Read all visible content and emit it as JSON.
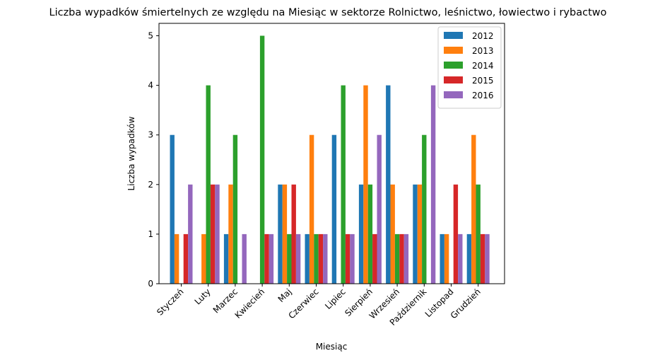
{
  "chart_data": {
    "type": "bar",
    "title": "Liczba wypadków śmiertelnych ze względu na Miesiąc w sektorze Rolnictwo, leśnictwo, łowiectwo i rybactwo",
    "xlabel": "Miesiąc",
    "ylabel": "Liczba wypadków",
    "ylim": [
      0,
      5.25
    ],
    "yticks": [
      0,
      1,
      2,
      3,
      4,
      5
    ],
    "grid": false,
    "legend_position": "top-right",
    "categories": [
      "Styczeń",
      "Luty",
      "Marzec",
      "Kwiecień",
      "Maj",
      "Czerwiec",
      "Lipiec",
      "Sierpień",
      "Wrzesień",
      "Październik",
      "Listopad",
      "Grudzień"
    ],
    "series": [
      {
        "name": "2012",
        "color": "#1f77b4",
        "values": [
          3,
          0,
          1,
          0,
          2,
          1,
          3,
          2,
          4,
          2,
          1,
          1
        ]
      },
      {
        "name": "2013",
        "color": "#ff7f0e",
        "values": [
          1,
          1,
          2,
          0,
          2,
          3,
          0,
          4,
          2,
          2,
          1,
          3
        ]
      },
      {
        "name": "2014",
        "color": "#2ca02c",
        "values": [
          0,
          4,
          3,
          5,
          1,
          1,
          4,
          2,
          1,
          3,
          0,
          2
        ]
      },
      {
        "name": "2015",
        "color": "#d62728",
        "values": [
          1,
          2,
          0,
          1,
          2,
          1,
          1,
          1,
          1,
          0,
          2,
          1
        ]
      },
      {
        "name": "2016",
        "color": "#9467bd",
        "values": [
          2,
          2,
          1,
          1,
          1,
          1,
          1,
          3,
          1,
          4,
          1,
          1
        ]
      }
    ]
  }
}
